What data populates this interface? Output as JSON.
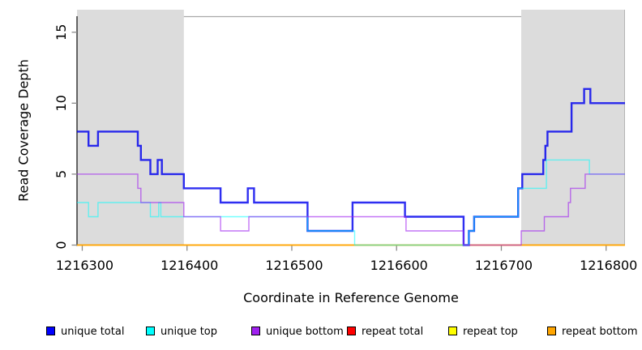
{
  "figure": {
    "x_axis_label": "Coordinate in Reference Genome",
    "y_axis_label": "Read Coverage Depth"
  },
  "legend": {
    "position": "bottom",
    "items": [
      {
        "id": "unique-total",
        "label": "unique total",
        "color": "#0000FF"
      },
      {
        "id": "unique-top",
        "label": "unique top",
        "color": "#00FFFF"
      },
      {
        "id": "unique-bottom",
        "label": "unique bottom",
        "color": "#A020F0"
      },
      {
        "id": "repeat-total",
        "label": "repeat total",
        "color": "#FF0000"
      },
      {
        "id": "repeat-top",
        "label": "repeat top",
        "color": "#FFFF00"
      },
      {
        "id": "repeat-bottom",
        "label": "repeat bottom",
        "color": "#FFA500"
      }
    ]
  },
  "chart_data": {
    "type": "line",
    "subtype": "step-after",
    "title": "",
    "xlabel": "Coordinate in Reference Genome",
    "ylabel": "Read Coverage Depth",
    "xlim": [
      1216295,
      1216818
    ],
    "ylim": [
      0,
      16.1
    ],
    "x_ticks": [
      1216300,
      1216400,
      1216500,
      1216600,
      1216700,
      1216800
    ],
    "y_ticks": [
      0,
      5,
      10,
      15
    ],
    "grid": false,
    "legend_position": "bottom",
    "axis_color": "#1a1a1a",
    "tick_color": "#8a8a8a",
    "box_color": "#a8a8a8",
    "shaded_regions": [
      {
        "x0": 1216295,
        "x1": 1216397,
        "color": "#dcdcdc"
      },
      {
        "x0": 1216719,
        "x1": 1216818,
        "color": "#dcdcdc"
      }
    ],
    "series": [
      {
        "id": "repeat-total",
        "name": "repeat total",
        "color": "#FF0000",
        "opacity": 1,
        "width": 1.3,
        "steps": [
          [
            1216295,
            0
          ]
        ]
      },
      {
        "id": "repeat-top",
        "name": "repeat top",
        "color": "#FFFF00",
        "opacity": 1,
        "width": 1.3,
        "steps": [
          [
            1216295,
            0
          ]
        ]
      },
      {
        "id": "repeat-bottom",
        "name": "repeat bottom",
        "color": "#FFA500",
        "opacity": 1,
        "width": 1.7,
        "steps": [
          [
            1216295,
            0
          ]
        ]
      },
      {
        "id": "unique-total",
        "name": "unique total",
        "color": "#0000EE",
        "opacity": 0.82,
        "width": 2.4,
        "steps": [
          [
            1216295,
            8
          ],
          [
            1216306,
            7
          ],
          [
            1216315,
            8
          ],
          [
            1216353,
            7
          ],
          [
            1216356,
            6
          ],
          [
            1216365,
            5
          ],
          [
            1216372,
            6
          ],
          [
            1216376,
            5
          ],
          [
            1216397,
            4
          ],
          [
            1216432,
            3
          ],
          [
            1216458,
            4
          ],
          [
            1216464,
            3
          ],
          [
            1216515,
            1
          ],
          [
            1216558,
            3
          ],
          [
            1216608,
            2
          ],
          [
            1216664,
            0
          ],
          [
            1216669,
            1
          ],
          [
            1216674,
            2
          ],
          [
            1216716,
            4
          ],
          [
            1216720,
            5
          ],
          [
            1216740,
            6
          ],
          [
            1216742,
            7
          ],
          [
            1216744,
            8
          ],
          [
            1216767,
            10
          ],
          [
            1216779,
            11
          ],
          [
            1216785,
            10
          ]
        ]
      },
      {
        "id": "unique-top",
        "name": "unique top",
        "color": "#00FFFF",
        "opacity": 0.55,
        "width": 1.4,
        "steps": [
          [
            1216295,
            3
          ],
          [
            1216306,
            2
          ],
          [
            1216315,
            3
          ],
          [
            1216365,
            2
          ],
          [
            1216373,
            3
          ],
          [
            1216375,
            2
          ],
          [
            1216515,
            1
          ],
          [
            1216560,
            0
          ],
          [
            1216669,
            1
          ],
          [
            1216674,
            2
          ],
          [
            1216716,
            4
          ],
          [
            1216743,
            6
          ],
          [
            1216784,
            5
          ]
        ]
      },
      {
        "id": "unique-bottom",
        "name": "unique bottom",
        "color": "#A020F0",
        "opacity": 0.62,
        "width": 1.4,
        "steps": [
          [
            1216295,
            5
          ],
          [
            1216353,
            4
          ],
          [
            1216356,
            3
          ],
          [
            1216397,
            2
          ],
          [
            1216432,
            1
          ],
          [
            1216459,
            2
          ],
          [
            1216609,
            1
          ],
          [
            1216664,
            0
          ],
          [
            1216719,
            1
          ],
          [
            1216741,
            2
          ],
          [
            1216764,
            3
          ],
          [
            1216766,
            4
          ],
          [
            1216780,
            5
          ]
        ]
      }
    ]
  }
}
